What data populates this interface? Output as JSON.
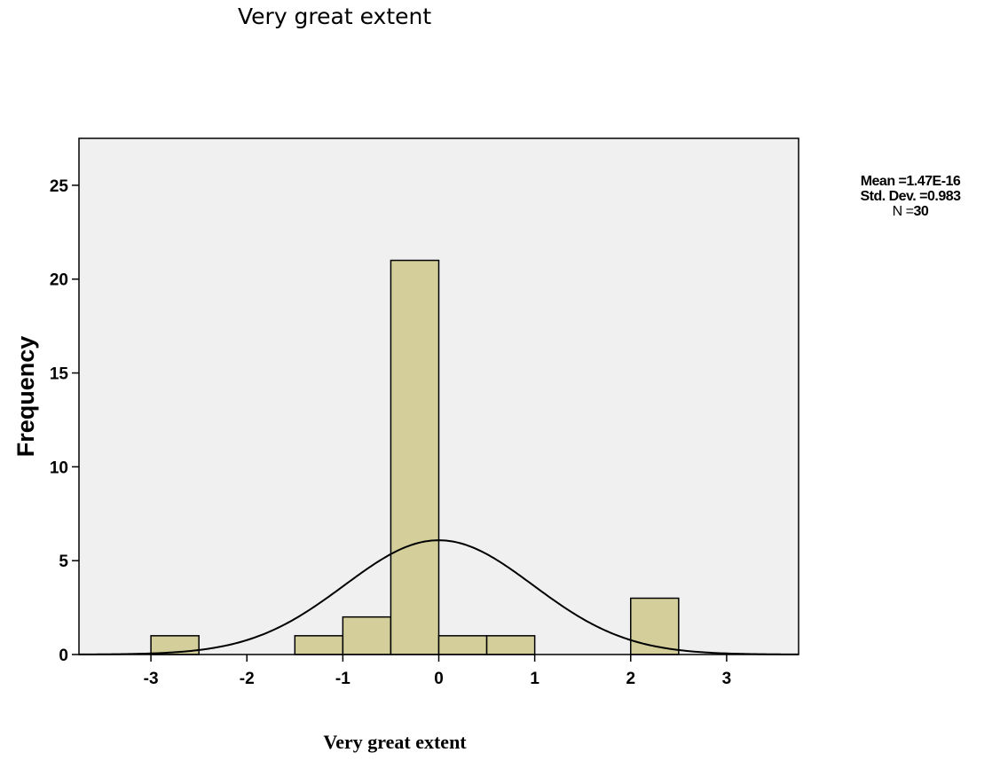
{
  "page_title": "Very great extent",
  "stats": {
    "mean_line": "Mean =1.47E-16",
    "std_line": "Std. Dev. =0.983",
    "n_label": "N =",
    "n_value": "30"
  },
  "colors": {
    "plot_background": "#f0f0f0",
    "bar_fill": "#d4cf9a",
    "bar_stroke": "#000000",
    "curve": "#000000"
  },
  "chart_data": {
    "type": "bar",
    "title": "",
    "xlabel": "Very great extent",
    "ylabel": "Frequency",
    "xlim": [
      -3.75,
      3.75
    ],
    "ylim": [
      0,
      27.5
    ],
    "grid": false,
    "x_ticks": [
      -3,
      -2,
      -1,
      0,
      1,
      2,
      3
    ],
    "x_tick_labels": [
      "-3",
      "-2",
      "-1",
      "0",
      "1",
      "2",
      "3"
    ],
    "y_ticks": [
      0,
      5,
      10,
      15,
      20,
      25
    ],
    "y_tick_labels": [
      "0",
      "5",
      "10",
      "15",
      "20",
      "25"
    ],
    "bins": [
      {
        "start": -3.0,
        "end": -2.5,
        "count": 1
      },
      {
        "start": -1.5,
        "end": -1.0,
        "count": 1
      },
      {
        "start": -1.0,
        "end": -0.5,
        "count": 2
      },
      {
        "start": -0.5,
        "end": 0.0,
        "count": 21
      },
      {
        "start": 0.0,
        "end": 0.5,
        "count": 1
      },
      {
        "start": 0.5,
        "end": 1.0,
        "count": 1
      },
      {
        "start": 2.0,
        "end": 2.5,
        "count": 3
      }
    ],
    "normal_curve": {
      "mean": 0,
      "std_dev": 0.983,
      "n": 30,
      "bin_width": 0.5
    }
  }
}
